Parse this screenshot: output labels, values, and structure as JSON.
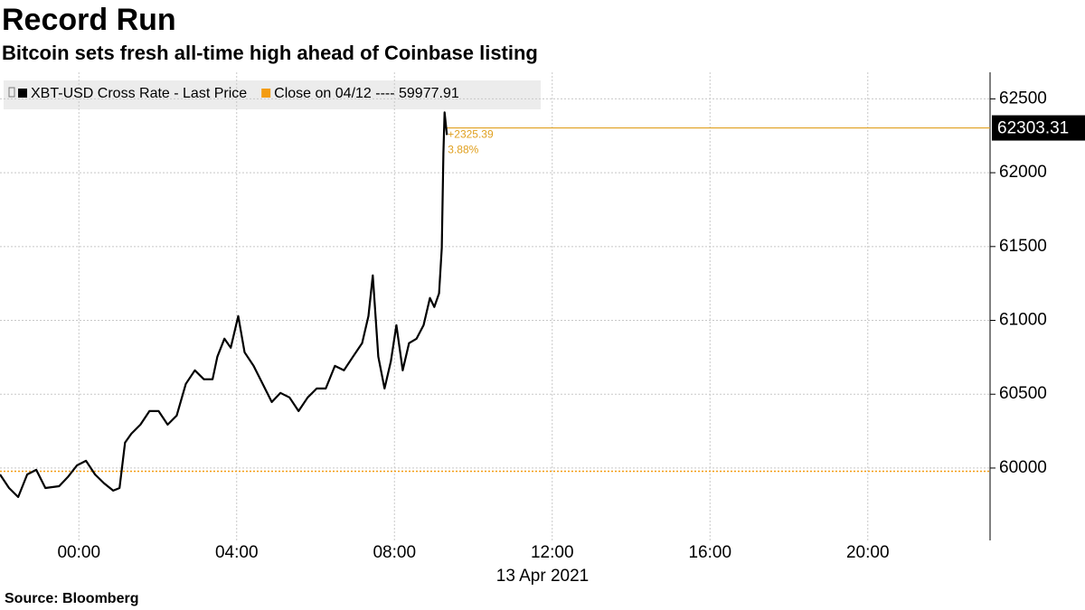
{
  "chart_data": {
    "type": "line",
    "title": "Record Run",
    "subtitle": "Bitcoin sets fresh all-time high ahead of Coinbase listing",
    "source": "Source: Bloomberg",
    "x_label": "13 Apr 2021",
    "x": [
      -2.0,
      -1.77,
      -1.54,
      -1.31,
      -1.08,
      -0.85,
      -0.5,
      -0.28,
      -0.05,
      0.18,
      0.41,
      0.64,
      0.87,
      1.03,
      1.17,
      1.33,
      1.56,
      1.79,
      2.02,
      2.25,
      2.48,
      2.71,
      2.94,
      3.17,
      3.39,
      3.51,
      3.69,
      3.85,
      4.04,
      4.2,
      4.43,
      4.66,
      4.89,
      5.11,
      5.34,
      5.57,
      5.8,
      6.03,
      6.26,
      6.49,
      6.72,
      6.95,
      7.18,
      7.34,
      7.45,
      7.59,
      7.75,
      7.91,
      8.05,
      8.21,
      8.37,
      8.56,
      8.74,
      8.9,
      9.01,
      9.13,
      9.2,
      9.24,
      9.27,
      9.33
    ],
    "series": [
      {
        "name": "XBT-USD Cross Rate - Last Price",
        "color": "#000000",
        "values": [
          59957,
          59865,
          59804,
          59957,
          59988,
          59865,
          59877,
          59939,
          60018,
          60049,
          59957,
          59896,
          59847,
          59865,
          60172,
          60233,
          60294,
          60386,
          60386,
          60294,
          60355,
          60570,
          60662,
          60601,
          60601,
          60754,
          60876,
          60815,
          61029,
          60784,
          60692,
          60570,
          60447,
          60509,
          60478,
          60386,
          60478,
          60539,
          60539,
          60692,
          60662,
          60754,
          60846,
          61029,
          61305,
          60754,
          60539,
          60723,
          60968,
          60662,
          60846,
          60876,
          60968,
          61152,
          61091,
          61183,
          61489,
          62132,
          62408,
          62255
        ]
      }
    ],
    "reference_lines": [
      {
        "name": "Close on 04/12 ---- 59977.91",
        "value": 59977.91,
        "color": "#f39c12",
        "style": "dotted"
      }
    ],
    "last_value": {
      "value": 62303.31,
      "color": "#e0a020"
    },
    "annotations": [
      "+2325.39",
      "3.88%"
    ],
    "xlim": [
      -2,
      23.1
    ],
    "xticks": [
      {
        "value": 0,
        "label": "00:00"
      },
      {
        "value": 4,
        "label": "04:00"
      },
      {
        "value": 8,
        "label": "08:00"
      },
      {
        "value": 12,
        "label": "12:00"
      },
      {
        "value": 16,
        "label": "16:00"
      },
      {
        "value": 20,
        "label": "20:00"
      }
    ],
    "ylim": [
      59510,
      62680
    ],
    "yticks": [
      60000,
      60500,
      61000,
      61500,
      62000,
      62500
    ],
    "grid": true
  }
}
